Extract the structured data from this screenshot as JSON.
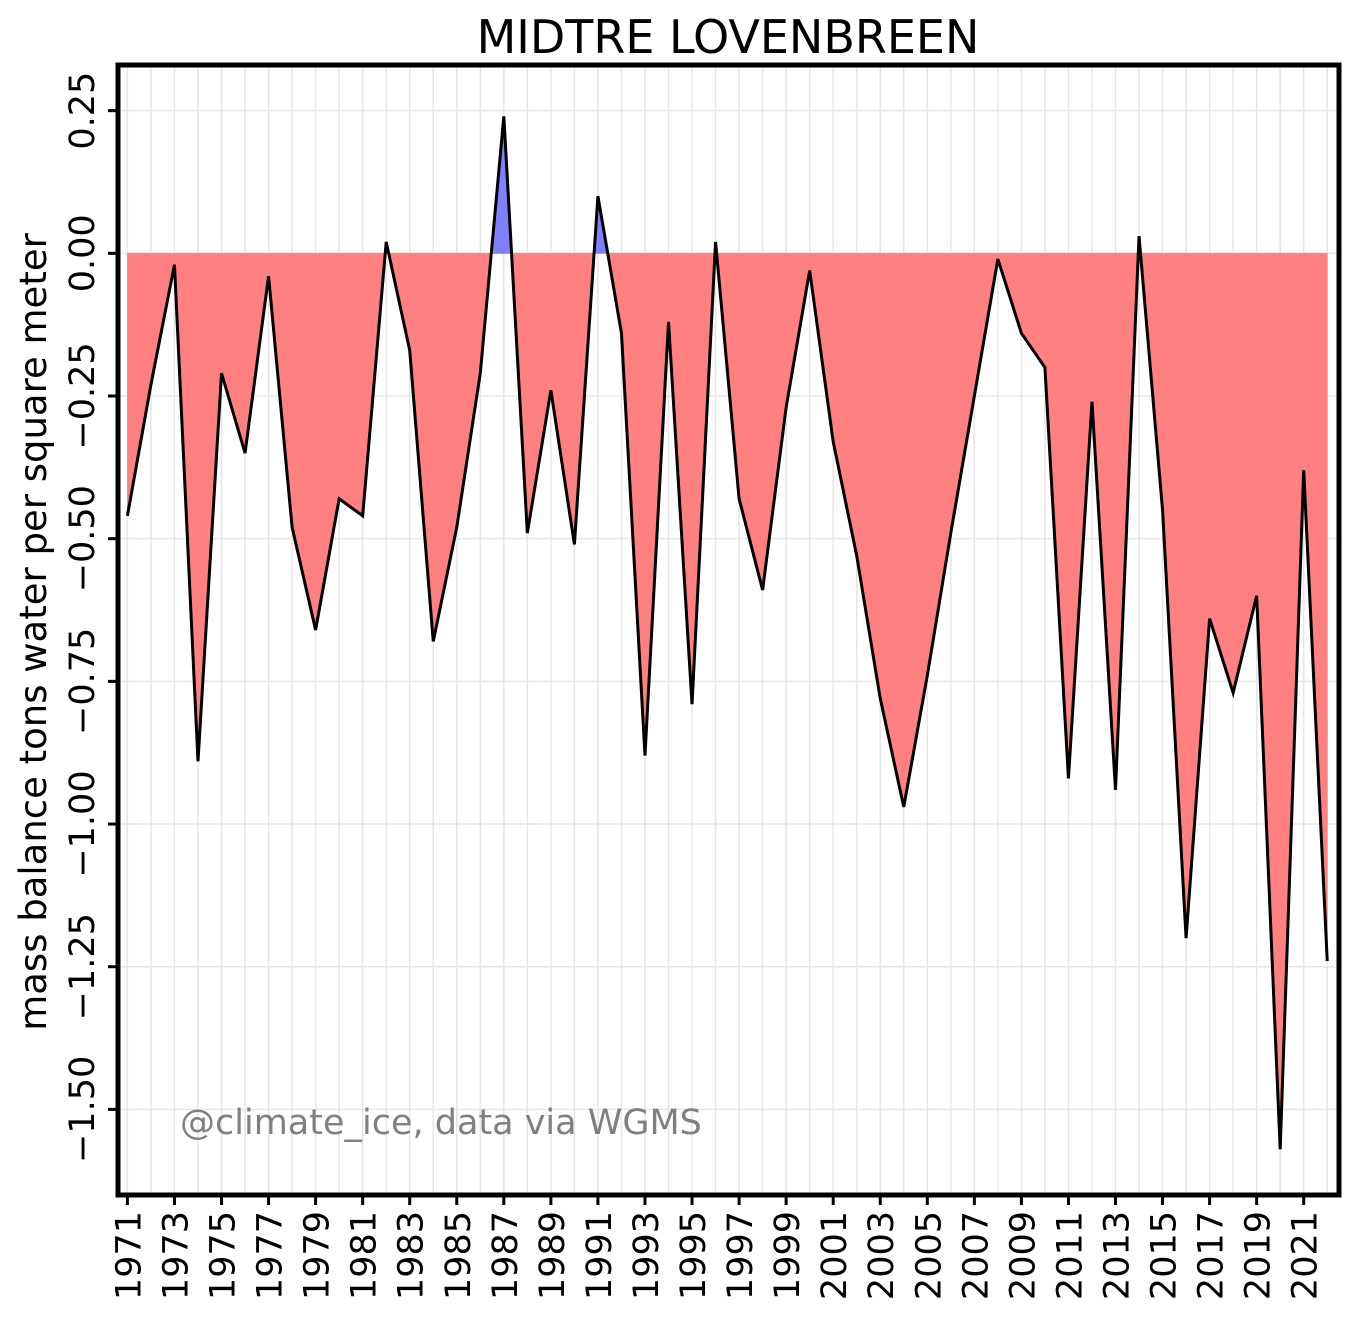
{
  "chart_data": {
    "type": "area",
    "title": "MIDTRE LOVENBREEN",
    "ylabel": "mass balance tons water per square meter",
    "xlabel": "",
    "annotation": "@climate_ice, data via WGMS",
    "xlim": [
      1970.6,
      2022.5
    ],
    "ylim": [
      -1.65,
      0.33
    ],
    "yticks": [
      0.25,
      0.0,
      -0.25,
      -0.5,
      -0.75,
      -1.0,
      -1.25,
      -1.5
    ],
    "ytick_labels": [
      "0.25",
      "0.00",
      "−0.25",
      "−0.50",
      "−0.75",
      "−1.00",
      "−1.25",
      "−1.50"
    ],
    "xticks": [
      1971,
      1973,
      1975,
      1977,
      1979,
      1981,
      1983,
      1985,
      1987,
      1989,
      1991,
      1993,
      1995,
      1997,
      1999,
      2001,
      2003,
      2005,
      2007,
      2009,
      2011,
      2013,
      2015,
      2017,
      2019,
      2021
    ],
    "xtick_labels": [
      "1971",
      "1973",
      "1975",
      "1977",
      "1979",
      "1981",
      "1983",
      "1985",
      "1987",
      "1989",
      "1991",
      "1993",
      "1995",
      "1997",
      "1999",
      "2001",
      "2003",
      "2005",
      "2007",
      "2009",
      "2011",
      "2013",
      "2015",
      "2017",
      "2019",
      "2021"
    ],
    "x": [
      1971,
      1972,
      1973,
      1974,
      1975,
      1976,
      1977,
      1978,
      1979,
      1980,
      1981,
      1982,
      1983,
      1984,
      1985,
      1986,
      1987,
      1988,
      1989,
      1990,
      1991,
      1992,
      1993,
      1994,
      1995,
      1996,
      1997,
      1998,
      1999,
      2000,
      2001,
      2002,
      2003,
      2004,
      2005,
      2006,
      2007,
      2008,
      2009,
      2010,
      2011,
      2012,
      2013,
      2014,
      2015,
      2016,
      2017,
      2018,
      2019,
      2020,
      2021,
      2022
    ],
    "values": [
      -0.46,
      -0.23,
      -0.02,
      -0.89,
      -0.21,
      -0.35,
      -0.04,
      -0.48,
      -0.66,
      -0.43,
      -0.46,
      0.02,
      -0.17,
      -0.68,
      -0.48,
      -0.21,
      0.24,
      -0.49,
      -0.24,
      -0.51,
      0.1,
      -0.14,
      -0.88,
      -0.12,
      -0.79,
      0.02,
      -0.43,
      -0.59,
      -0.27,
      -0.03,
      -0.33,
      -0.53,
      -0.78,
      -0.97,
      -0.74,
      -0.49,
      -0.25,
      -0.01,
      -0.14,
      -0.2,
      -0.92,
      -0.26,
      -0.94,
      0.03,
      -0.45,
      -1.2,
      -0.64,
      -0.77,
      -0.6,
      -1.57,
      -0.38,
      -1.24
    ],
    "grid": true,
    "colors": {
      "positive_fill": "#8080ff",
      "negative_fill": "#ff8080",
      "line": "#000000",
      "grid": "#e6e6e6",
      "annotation": "#808080"
    }
  }
}
